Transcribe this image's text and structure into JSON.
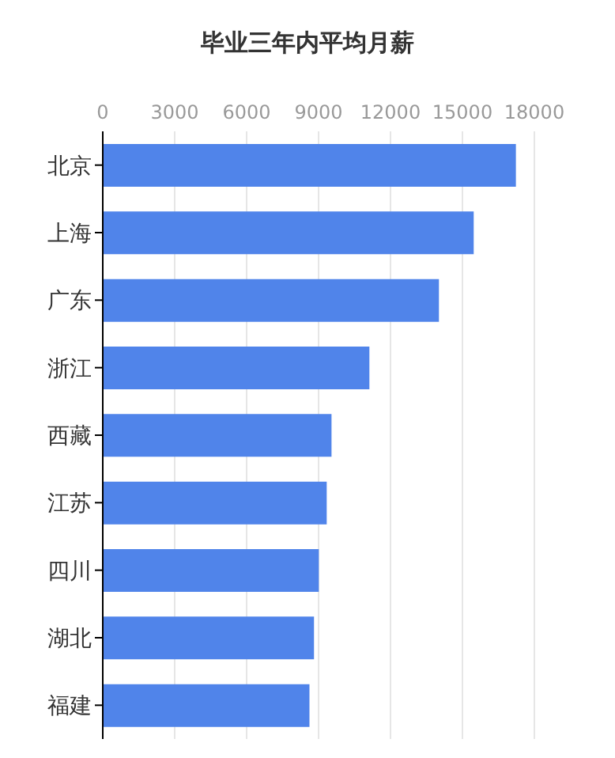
{
  "chart_data": {
    "type": "bar",
    "orientation": "horizontal",
    "title": "毕业三年内平均月薪",
    "categories": [
      "北京",
      "上海",
      "广东",
      "浙江",
      "西藏",
      "江苏",
      "四川",
      "湖北",
      "福建"
    ],
    "values": [
      17230,
      15470,
      14020,
      11120,
      9540,
      9340,
      9010,
      8810,
      8620
    ],
    "color": "#5084ea",
    "xlim": [
      0,
      18000
    ],
    "xticks": [
      0,
      3000,
      6000,
      9000,
      12000,
      15000,
      18000
    ],
    "grid": "x"
  }
}
